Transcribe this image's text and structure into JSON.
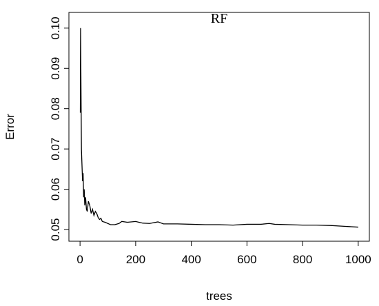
{
  "chart_data": {
    "type": "line",
    "title": "RF",
    "x_label": "trees",
    "y_label": "Error",
    "x": [
      1,
      2,
      3,
      5,
      7,
      9,
      11,
      13,
      15,
      17,
      20,
      23,
      26,
      30,
      35,
      40,
      45,
      50,
      55,
      60,
      65,
      70,
      75,
      80,
      90,
      100,
      110,
      125,
      140,
      150,
      170,
      200,
      225,
      250,
      280,
      300,
      350,
      400,
      450,
      500,
      550,
      600,
      650,
      680,
      700,
      750,
      800,
      850,
      900,
      950,
      1000
    ],
    "series": [
      {
        "name": "Error",
        "color": "#000000",
        "values": [
          0.079,
          0.1,
          0.09,
          0.07,
          0.066,
          0.062,
          0.064,
          0.058,
          0.06,
          0.056,
          0.058,
          0.055,
          0.0545,
          0.057,
          0.056,
          0.054,
          0.055,
          0.0535,
          0.0545,
          0.054,
          0.053,
          0.0525,
          0.0528,
          0.052,
          0.0518,
          0.0515,
          0.0512,
          0.0512,
          0.0515,
          0.052,
          0.0518,
          0.052,
          0.0516,
          0.0515,
          0.0519,
          0.0514,
          0.0514,
          0.0513,
          0.0512,
          0.0512,
          0.0511,
          0.0513,
          0.0513,
          0.0515,
          0.0513,
          0.0512,
          0.0511,
          0.0511,
          0.051,
          0.0508,
          0.0506
        ]
      }
    ],
    "xlim": [
      -40,
      1040
    ],
    "ylim": [
      0.0471,
      0.1039
    ],
    "xticks": [
      0,
      200,
      400,
      600,
      800,
      1000
    ],
    "yticks": [
      0.05,
      0.06,
      0.07,
      0.08,
      0.09,
      {
        "value": 0.1,
        "label": "0.10"
      }
    ]
  }
}
